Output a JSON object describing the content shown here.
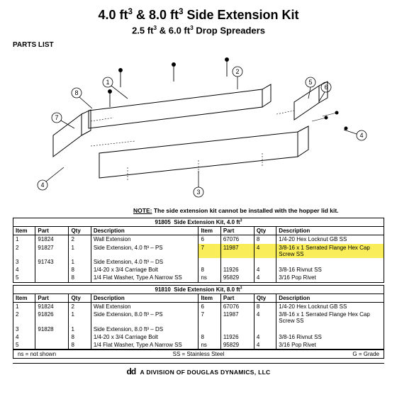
{
  "title_html": "4.0 ft<sup>3</sup> &amp; 8.0 ft<sup>3</sup> Side Extension Kit",
  "subtitle_html": "2.5 ft<sup>3</sup> &amp; 6.0 ft<sup>3</sup> Drop Spreaders",
  "parts_label": "PARTS LIST",
  "note_prefix": "NOTE:",
  "note_body": " The side extension kit cannot be installed with the hopper lid kit.",
  "footer_logo": "dd",
  "footer_text": "A DIVISION OF DOUGLAS DYNAMICS, LLC",
  "legend": {
    "a": "ns = not shown",
    "b": "SS = Stainless Steel",
    "c": "G = Grade"
  },
  "colors": {
    "highlight": "#f9ee5a",
    "line": "#000000",
    "bg": "#ffffff"
  },
  "diagram": {
    "callouts": [
      1,
      2,
      3,
      4,
      5,
      6,
      7,
      8
    ],
    "style": "isometric-line-drawing"
  },
  "kits": [
    {
      "title_html": "91805&nbsp;&nbsp;Side Extension Kit, 4.0 ft<sup>3</sup>",
      "headers": [
        "Item",
        "Part",
        "Qty",
        "Description",
        "Item",
        "Part",
        "Qty",
        "Description"
      ],
      "rows": [
        {
          "l": [
            "1",
            "91824",
            "2",
            "Wall Extension"
          ],
          "r": [
            "6",
            "67076",
            "8",
            "1/4-20 Hex Locknut GB SS"
          ]
        },
        {
          "l": [
            "2",
            "91827",
            "1",
            "Side Extension, 4.0 ft³ – PS"
          ],
          "r": [
            "7",
            "11987",
            "4",
            "3/8-16 x 1 Serrated Flange Hex Cap Screw SS"
          ],
          "hl_r": true
        },
        {
          "l": [
            "3",
            "91743",
            "1",
            "Side Extension, 4.0 ft³ – DS"
          ],
          "r": [
            "",
            "",
            "",
            ""
          ]
        },
        {
          "l": [
            "4",
            "",
            "8",
            "1/4-20 x 3/4 Carriage Bolt"
          ],
          "r": [
            "8",
            "11926",
            "4",
            "3/8-16 Rivnut SS"
          ]
        },
        {
          "l": [
            "5",
            "",
            "8",
            "1/4 Flat Washer, Type A Narrow SS"
          ],
          "r": [
            "ns",
            "95829",
            "4",
            "3/16 Pop Rivet"
          ]
        }
      ]
    },
    {
      "title_html": "91810&nbsp;&nbsp;Side Extension Kit, 8.0 ft<sup>3</sup>",
      "headers": [
        "Item",
        "Part",
        "Qty",
        "Description",
        "Item",
        "Part",
        "Qty",
        "Description"
      ],
      "rows": [
        {
          "l": [
            "1",
            "91824",
            "2",
            "Wall Extension"
          ],
          "r": [
            "6",
            "67076",
            "8",
            "1/4-20 Hex Locknut GB SS"
          ]
        },
        {
          "l": [
            "2",
            "91826",
            "1",
            "Side Extension, 8.0 ft³ – PS"
          ],
          "r": [
            "7",
            "11987",
            "4",
            "3/8-16 x 1 Serrated Flange Hex Cap Screw SS"
          ]
        },
        {
          "l": [
            "3",
            "91828",
            "1",
            "Side Extension, 8.0 ft³ – DS"
          ],
          "r": [
            "",
            "",
            "",
            ""
          ]
        },
        {
          "l": [
            "4",
            "",
            "8",
            "1/4-20 x 3/4 Carriage Bolt"
          ],
          "r": [
            "8",
            "11926",
            "4",
            "3/8-16 Rivnut SS"
          ]
        },
        {
          "l": [
            "5",
            "",
            "8",
            "1/4 Flat Washer, Type A Narrow SS"
          ],
          "r": [
            "ns",
            "95829",
            "4",
            "3/16 Pop Rivet"
          ]
        }
      ]
    }
  ]
}
